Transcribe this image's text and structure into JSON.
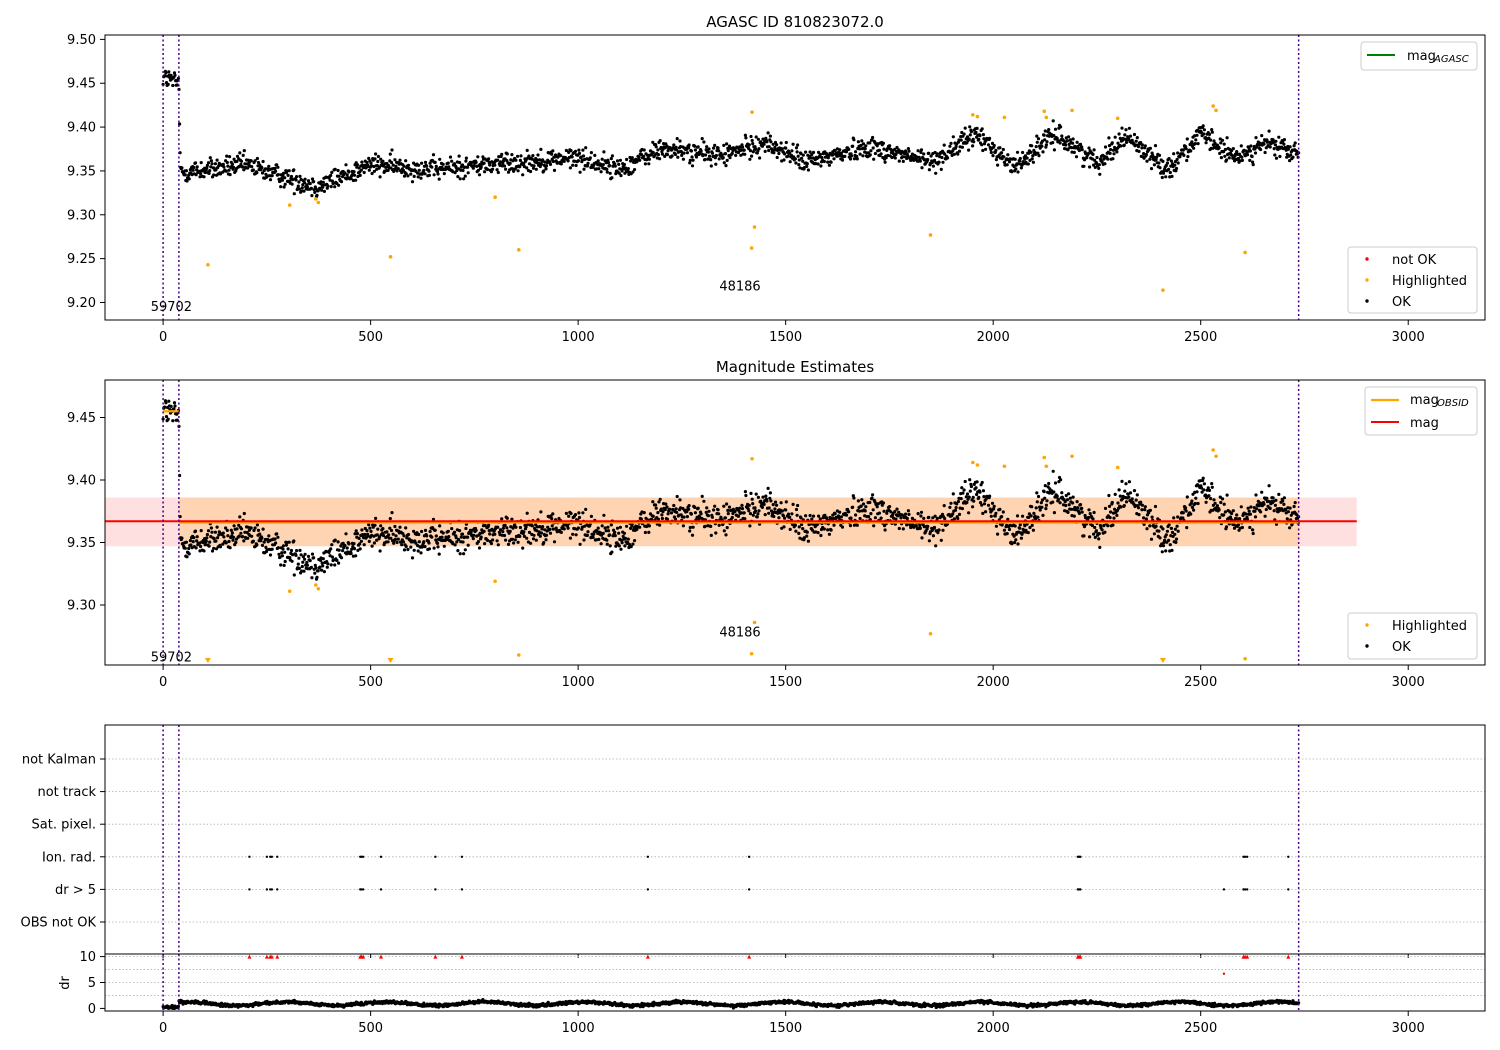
{
  "chart_data": [
    {
      "type": "scatter",
      "title": "AGASC ID 810823072.0",
      "xlim": [
        -140,
        3185
      ],
      "ylim": [
        9.18,
        9.505
      ],
      "xticks": [
        0,
        500,
        1000,
        1500,
        2000,
        2500,
        3000
      ],
      "xtick_labels": [
        "0",
        "500",
        "1000",
        "1500",
        "2000",
        "2500",
        "3000"
      ],
      "yticks": [
        9.2,
        9.25,
        9.3,
        9.35,
        9.4,
        9.45,
        9.5
      ],
      "ytick_labels": [
        "9.20",
        "9.25",
        "9.30",
        "9.35",
        "9.40",
        "9.45",
        "9.50"
      ],
      "obsid_lines_x": [
        0,
        38,
        2736
      ],
      "annotations": [
        {
          "text": "59702",
          "x": 20,
          "y": 9.195
        },
        {
          "text": "48186",
          "x": 1390,
          "y": 9.218
        }
      ],
      "legend_upper": {
        "position": "top-right",
        "entries": [
          {
            "name": "mag",
            "sub": "AGASC",
            "color": "#008000"
          }
        ]
      },
      "legend_lower": {
        "position": "bottom-right",
        "entries": [
          {
            "name": "not OK",
            "color": "#ff0000"
          },
          {
            "name": "Highlighted",
            "color": "#ffa500"
          },
          {
            "name": "OK",
            "color": "#000000"
          }
        ]
      },
      "highlighted_points": [
        {
          "x": 108,
          "y": 9.243
        },
        {
          "x": 305,
          "y": 9.311
        },
        {
          "x": 368,
          "y": 9.318
        },
        {
          "x": 374,
          "y": 9.314
        },
        {
          "x": 548,
          "y": 9.252
        },
        {
          "x": 800,
          "y": 9.32
        },
        {
          "x": 857,
          "y": 9.26
        },
        {
          "x": 1419,
          "y": 9.417
        },
        {
          "x": 1425,
          "y": 9.286
        },
        {
          "x": 1418,
          "y": 9.262
        },
        {
          "x": 1849,
          "y": 9.277
        },
        {
          "x": 1951,
          "y": 9.414
        },
        {
          "x": 1962,
          "y": 9.412
        },
        {
          "x": 2027,
          "y": 9.411
        },
        {
          "x": 2123,
          "y": 9.418
        },
        {
          "x": 2128,
          "y": 9.411
        },
        {
          "x": 2190,
          "y": 9.419
        },
        {
          "x": 2300,
          "y": 9.41
        },
        {
          "x": 2409,
          "y": 9.214
        },
        {
          "x": 2530,
          "y": 9.424
        },
        {
          "x": 2537,
          "y": 9.419
        },
        {
          "x": 2607,
          "y": 9.257
        }
      ],
      "ok_profile": [
        {
          "x": 0,
          "y": 9.457
        },
        {
          "x": 38,
          "y": 9.45
        },
        {
          "x": 42,
          "y": 9.348
        },
        {
          "x": 200,
          "y": 9.357
        },
        {
          "x": 300,
          "y": 9.342
        },
        {
          "x": 370,
          "y": 9.332
        },
        {
          "x": 500,
          "y": 9.357
        },
        {
          "x": 650,
          "y": 9.352
        },
        {
          "x": 800,
          "y": 9.358
        },
        {
          "x": 1000,
          "y": 9.365
        },
        {
          "x": 1100,
          "y": 9.352
        },
        {
          "x": 1200,
          "y": 9.375
        },
        {
          "x": 1350,
          "y": 9.368
        },
        {
          "x": 1450,
          "y": 9.382
        },
        {
          "x": 1550,
          "y": 9.36
        },
        {
          "x": 1700,
          "y": 9.378
        },
        {
          "x": 1850,
          "y": 9.36
        },
        {
          "x": 1960,
          "y": 9.392
        },
        {
          "x": 2050,
          "y": 9.355
        },
        {
          "x": 2150,
          "y": 9.392
        },
        {
          "x": 2250,
          "y": 9.36
        },
        {
          "x": 2320,
          "y": 9.39
        },
        {
          "x": 2420,
          "y": 9.352
        },
        {
          "x": 2500,
          "y": 9.392
        },
        {
          "x": 2580,
          "y": 9.365
        },
        {
          "x": 2660,
          "y": 9.382
        },
        {
          "x": 2736,
          "y": 9.368
        }
      ],
      "ok_scatter": 0.01,
      "ok_count": 2000
    },
    {
      "type": "scatter",
      "title": "Magnitude Estimates",
      "xlim": [
        -140,
        3185
      ],
      "ylim": [
        9.252,
        9.48
      ],
      "xticks": [
        0,
        500,
        1000,
        1500,
        2000,
        2500,
        3000
      ],
      "xtick_labels": [
        "0",
        "500",
        "1000",
        "1500",
        "2000",
        "2500",
        "3000"
      ],
      "yticks": [
        9.3,
        9.35,
        9.4,
        9.45
      ],
      "ytick_labels": [
        "9.30",
        "9.35",
        "9.40",
        "9.45"
      ],
      "obsid_lines_x": [
        0,
        38,
        2736
      ],
      "annotations": [
        {
          "text": "59702",
          "x": 20,
          "y": 9.258
        },
        {
          "text": "48186",
          "x": 1390,
          "y": 9.278
        }
      ],
      "mag_line": {
        "y": 9.367,
        "band": [
          9.347,
          9.386
        ],
        "xrange": [
          -140,
          2876
        ],
        "color": "#ff0000"
      },
      "mag_obsid_segments": [
        {
          "x0": 0,
          "x1": 38,
          "y": 9.455,
          "band": [
            9.452,
            9.458
          ]
        },
        {
          "x0": 38,
          "x1": 2736,
          "y": 9.366,
          "band": [
            9.347,
            9.386
          ]
        }
      ],
      "legend_upper": {
        "position": "top-right",
        "entries": [
          {
            "name": "mag",
            "sub": "OBSID",
            "color": "#ffa500"
          },
          {
            "name": "mag",
            "sub": "",
            "color": "#ff0000"
          }
        ]
      },
      "legend_lower": {
        "position": "bottom-right",
        "entries": [
          {
            "name": "Highlighted",
            "color": "#ffa500"
          },
          {
            "name": "OK",
            "color": "#000000"
          }
        ]
      },
      "highlighted_points": [
        {
          "x": 305,
          "y": 9.311
        },
        {
          "x": 368,
          "y": 9.316
        },
        {
          "x": 374,
          "y": 9.313
        },
        {
          "x": 800,
          "y": 9.319
        },
        {
          "x": 857,
          "y": 9.26
        },
        {
          "x": 1419,
          "y": 9.417
        },
        {
          "x": 1425,
          "y": 9.286
        },
        {
          "x": 1418,
          "y": 9.261
        },
        {
          "x": 1849,
          "y": 9.277
        },
        {
          "x": 1951,
          "y": 9.414
        },
        {
          "x": 1962,
          "y": 9.412
        },
        {
          "x": 2027,
          "y": 9.411
        },
        {
          "x": 2123,
          "y": 9.418
        },
        {
          "x": 2128,
          "y": 9.411
        },
        {
          "x": 2190,
          "y": 9.419
        },
        {
          "x": 2300,
          "y": 9.41
        },
        {
          "x": 2530,
          "y": 9.424
        },
        {
          "x": 2537,
          "y": 9.419
        },
        {
          "x": 2607,
          "y": 9.257
        }
      ],
      "lower_limit_markers": [
        {
          "x": 108
        },
        {
          "x": 548
        },
        {
          "x": 2409
        }
      ],
      "ok_profile": [
        {
          "x": 0,
          "y": 9.457
        },
        {
          "x": 38,
          "y": 9.45
        },
        {
          "x": 42,
          "y": 9.348
        },
        {
          "x": 200,
          "y": 9.357
        },
        {
          "x": 300,
          "y": 9.342
        },
        {
          "x": 370,
          "y": 9.332
        },
        {
          "x": 500,
          "y": 9.357
        },
        {
          "x": 650,
          "y": 9.352
        },
        {
          "x": 800,
          "y": 9.358
        },
        {
          "x": 1000,
          "y": 9.365
        },
        {
          "x": 1100,
          "y": 9.352
        },
        {
          "x": 1200,
          "y": 9.375
        },
        {
          "x": 1350,
          "y": 9.368
        },
        {
          "x": 1450,
          "y": 9.382
        },
        {
          "x": 1550,
          "y": 9.36
        },
        {
          "x": 1700,
          "y": 9.378
        },
        {
          "x": 1850,
          "y": 9.36
        },
        {
          "x": 1960,
          "y": 9.392
        },
        {
          "x": 2050,
          "y": 9.355
        },
        {
          "x": 2150,
          "y": 9.392
        },
        {
          "x": 2250,
          "y": 9.36
        },
        {
          "x": 2320,
          "y": 9.39
        },
        {
          "x": 2420,
          "y": 9.352
        },
        {
          "x": 2500,
          "y": 9.392
        },
        {
          "x": 2580,
          "y": 9.365
        },
        {
          "x": 2660,
          "y": 9.382
        },
        {
          "x": 2736,
          "y": 9.368
        }
      ],
      "ok_scatter": 0.01,
      "ok_count": 2000
    },
    {
      "type": "scatter",
      "title": "",
      "xlim": [
        -140,
        3185
      ],
      "categories": [
        "not Kalman",
        "not track",
        "Sat. pixel.",
        "Ion. rad.",
        "dr > 5",
        "OBS not OK"
      ],
      "obsid_lines_x": [
        0,
        38,
        2736
      ],
      "flags": {
        "Ion. rad.": [
          208,
          250,
          258,
          262,
          275,
          475,
          478,
          482,
          525,
          656,
          720,
          1168,
          1412,
          2204,
          2207,
          2210,
          2603,
          2607,
          2612,
          2711
        ],
        "dr > 5": [
          208,
          250,
          258,
          262,
          275,
          475,
          478,
          482,
          525,
          656,
          720,
          1168,
          1412,
          2204,
          2207,
          2210,
          2556,
          2603,
          2607,
          2612,
          2711
        ]
      }
    },
    {
      "type": "scatter",
      "title": "",
      "xlim": [
        -140,
        3185
      ],
      "ylim": [
        -0.5,
        10.5
      ],
      "yticks": [
        0,
        5,
        10
      ],
      "ytick_labels": [
        "0",
        "5",
        "10"
      ],
      "ylabel": "dr",
      "xticks": [
        0,
        500,
        1000,
        1500,
        2000,
        2500,
        3000
      ],
      "xtick_labels": [
        "0",
        "500",
        "1000",
        "1500",
        "2000",
        "2500",
        "3000"
      ],
      "obsid_lines_x": [
        0,
        38,
        2736
      ],
      "clipped_points": [
        208,
        250,
        258,
        262,
        275,
        475,
        478,
        482,
        525,
        656,
        720,
        1168,
        1412,
        2204,
        2207,
        2210,
        2603,
        2607,
        2612,
        2711
      ],
      "red_points": [
        {
          "x": 2556,
          "y": 6.7
        }
      ],
      "ok_range": [
        0.4,
        1.6
      ],
      "ok_count": 2000
    }
  ]
}
